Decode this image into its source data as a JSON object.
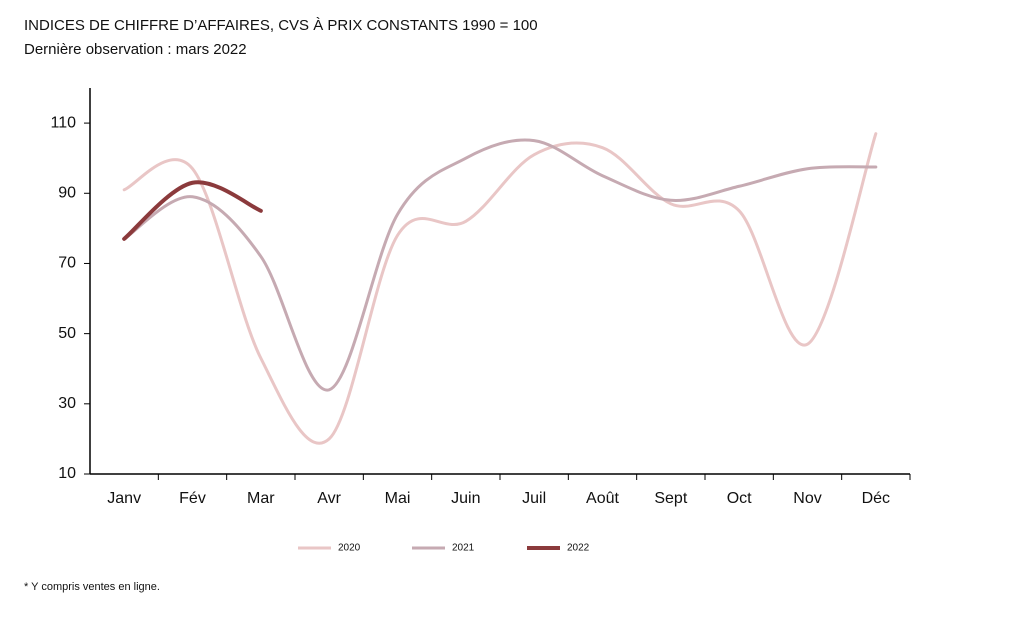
{
  "chart_data": {
    "type": "line",
    "title": "INDICES DE CHIFFRE D’AFFAIRES, CVS À PRIX CONSTANTS 1990 = 100",
    "subtitle": "Dernière observation : mars 2022",
    "footnote": "* Y compris ventes en ligne.",
    "categories": [
      "Janv",
      "Fév",
      "Mar",
      "Avr",
      "Mai",
      "Juin",
      "Juil",
      "Août",
      "Sept",
      "Oct",
      "Nov",
      "Déc"
    ],
    "series": [
      {
        "name": "2020",
        "color": "#e9c6c6",
        "values": [
          91,
          97,
          43,
          20,
          78,
          82,
          101,
          103,
          87,
          85,
          47,
          107
        ]
      },
      {
        "name": "2021",
        "color": "#c6aab2",
        "values": [
          77,
          89,
          72,
          34,
          84,
          100,
          105,
          95,
          88,
          92,
          97,
          97.5
        ]
      },
      {
        "name": "2022",
        "color": "#8b3a3c",
        "values": [
          77,
          93,
          85,
          null,
          null,
          null,
          null,
          null,
          null,
          null,
          null,
          null
        ]
      }
    ],
    "ylim": [
      10,
      120
    ],
    "yticks": [
      10,
      30,
      50,
      70,
      90,
      110
    ],
    "grid": false,
    "legend": "bottom"
  }
}
